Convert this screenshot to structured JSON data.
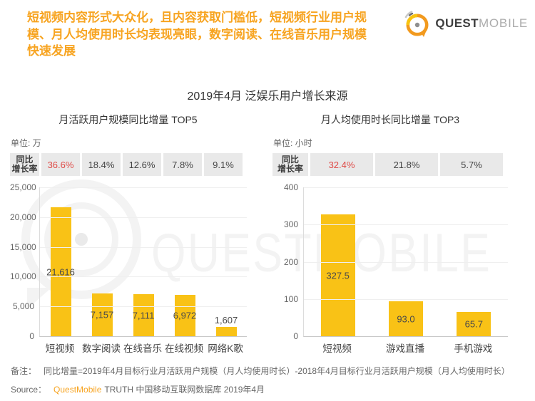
{
  "header": {
    "headline_lines": [
      "短视频内容形式大众化，且内容获取门槛低，短视频行业用户规",
      "模、月人均使用时长均表现亮眼，数字阅读、在线音乐用户规模",
      "快速发展"
    ],
    "logo": {
      "brand_bold": "QUEST",
      "brand_light": "MOBILE"
    }
  },
  "page_title": "2019年4月 泛娱乐用户增长来源",
  "chart_data": [
    {
      "type": "bar",
      "title": "月活跃用户规模同比增量 TOP5",
      "unit_label": "单位: 万",
      "rate_row_label_lines": [
        "同比",
        "增长率"
      ],
      "growth_rates": [
        "36.6%",
        "18.4%",
        "12.6%",
        "7.8%",
        "9.1%"
      ],
      "categories": [
        "短视频",
        "数字阅读",
        "在线音乐",
        "在线视频",
        "网络K歌"
      ],
      "values": [
        21616,
        7157,
        7111,
        6972,
        1607
      ],
      "value_labels": [
        "21,616",
        "7,157",
        "7,111",
        "6,972",
        "1,607"
      ],
      "ylim": [
        0,
        25000
      ],
      "ytick_labels": [
        "25,000",
        "20,000",
        "15,000",
        "10,000",
        "5,000",
        "0"
      ],
      "grid": "horizontal-light",
      "legend": "none"
    },
    {
      "type": "bar",
      "title": "月人均使用时长同比增量 TOP3",
      "unit_label": "单位: 小时",
      "rate_row_label_lines": [
        "同比",
        "增长率"
      ],
      "growth_rates": [
        "32.4%",
        "21.8%",
        "5.7%"
      ],
      "categories": [
        "短视频",
        "游戏直播",
        "手机游戏"
      ],
      "values": [
        327.5,
        93.0,
        65.7
      ],
      "value_labels": [
        "327.5",
        "93.0",
        "65.7"
      ],
      "ylim": [
        0,
        400
      ],
      "ytick_labels": [
        "400",
        "300",
        "200",
        "100",
        "0"
      ],
      "grid": "horizontal-light",
      "legend": "none"
    }
  ],
  "footer": {
    "note_label": "备注：",
    "note_text": "同比增量=2019年4月目标行业月活跃用户规模（月人均使用时长）-2018年4月目标行业月活跃用户规模（月人均使用时长）",
    "source_label": "Source：",
    "source_brand": "QuestMobile",
    "source_text": "TRUTH 中国移动互联网数据库 2019年4月"
  },
  "watermark": {
    "text": "QUESTMOBILE"
  },
  "colors": {
    "accent_orange": "#F7A421",
    "bar_yellow": "#F9C216",
    "highlight_red": "#DF4B47",
    "rate_cell_bg": "#E9E9E9",
    "text_dark": "#333333",
    "text_gray": "#666666"
  }
}
